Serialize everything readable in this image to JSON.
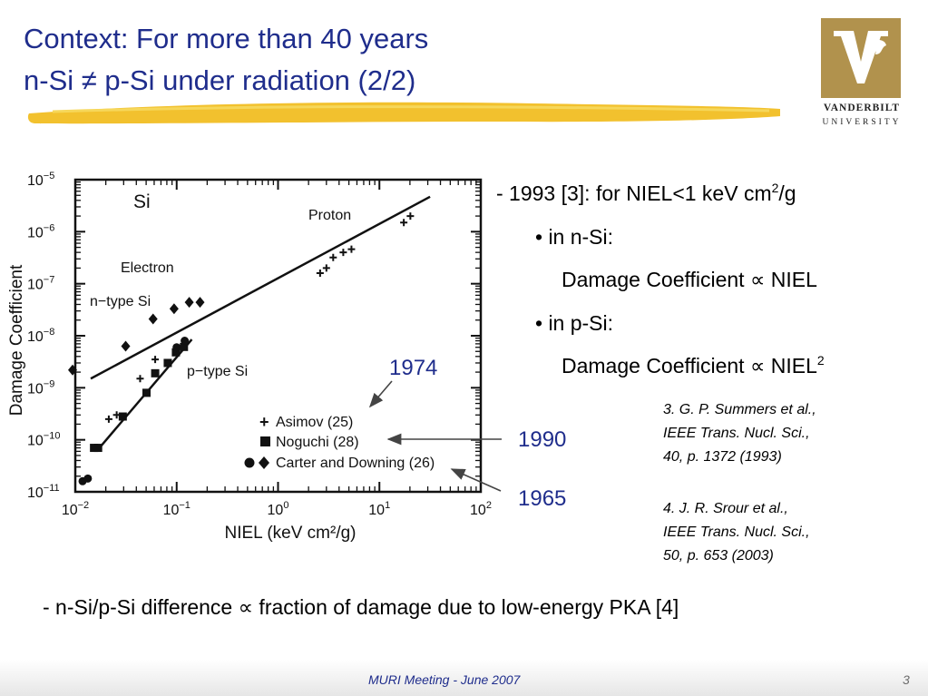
{
  "slide": {
    "title_line1": "Context: For more than 40 years",
    "title_line2": "n-Si ≠ p-Si under radiation (2/2)",
    "logo": {
      "line1": "VANDERBILT",
      "line2": "UNIVERSITY",
      "color": "#b1924d",
      "icon": "oak-leaf-v-icon"
    },
    "accent_color": "#1f2d8c",
    "brush_color": "#f2c12e"
  },
  "bullets": {
    "b1_text": "- 1993 [3]: for NIEL<1 keV cm",
    "b1_sup": "2",
    "b1_tail": "/g",
    "b2": "• in n-Si:",
    "b3": "Damage Coefficient ∝ NIEL",
    "b4": "• in p-Si:",
    "b5_text": "Damage Coefficient ∝ NIEL",
    "b5_sup": "2"
  },
  "refs": {
    "r3": [
      "3. G. P. Summers et al.,",
      "IEEE Trans. Nucl. Sci.,",
      "40, p. 1372 (1993)"
    ],
    "r4": [
      "4. J. R. Srour et al.,",
      "IEEE Trans. Nucl. Sci.,",
      "50, p. 653 (2003)"
    ]
  },
  "bottom_line": "- n-Si/p-Si difference ∝ fraction of damage due to low-energy PKA [4]",
  "footer": {
    "text": "MURI Meeting - June 2007",
    "page": "3"
  },
  "annotations": {
    "y1974": "1974",
    "y1990": "1990",
    "y1965": "1965"
  },
  "chart_data": {
    "type": "scatter",
    "xscale": "log",
    "yscale": "log",
    "xlim": [
      0.01,
      100
    ],
    "ylim": [
      1e-11,
      1e-05
    ],
    "xlabel": "NIEL (keV cm²/g)",
    "ylabel": "Damage Coefficient",
    "x_ticks": [
      0.01,
      0.1,
      1,
      10,
      100
    ],
    "x_tick_labels": [
      [
        "10",
        "−2"
      ],
      [
        "10",
        "−1"
      ],
      [
        "10",
        "0"
      ],
      [
        "10",
        "1"
      ],
      [
        "10",
        "2"
      ]
    ],
    "y_ticks": [
      1e-05,
      1e-06,
      1e-07,
      1e-08,
      1e-09,
      1e-10,
      1e-11
    ],
    "y_tick_labels": [
      [
        "10",
        "−5"
      ],
      [
        "10",
        "−6"
      ],
      [
        "10",
        "−7"
      ],
      [
        "10",
        "−8"
      ],
      [
        "10",
        "−9"
      ],
      [
        "10",
        "−10"
      ],
      [
        "10",
        "−11"
      ]
    ],
    "inner_labels": {
      "material": "Si",
      "proton": "Proton",
      "electron": "Electron",
      "ntype": "n−type Si",
      "ptype": "p−type Si"
    },
    "legend": [
      {
        "label": "Asimov (25)",
        "marker": "plus"
      },
      {
        "label": "Noguchi (28)",
        "marker": "square"
      },
      {
        "label": "Carter and Downing (26)",
        "marker": "circle-diamond"
      }
    ],
    "lines": [
      {
        "id": "n-type-fit",
        "points": [
          [
            0.0142,
            1.5e-09
          ],
          [
            31.6,
            4.7e-06
          ]
        ]
      },
      {
        "id": "p-type-fit",
        "points": [
          [
            0.0173,
            7e-11
          ],
          [
            0.141,
            8.5e-09
          ]
        ]
      }
    ],
    "series": [
      {
        "marker": "plus",
        "points": [
          [
            2.6,
            1.6e-07
          ],
          [
            3.0,
            2e-07
          ],
          [
            3.5,
            3.2e-07
          ],
          [
            4.4,
            4e-07
          ],
          [
            5.3,
            4.6e-07
          ],
          [
            17.4,
            1.5e-06
          ],
          [
            20.2,
            2e-06
          ],
          [
            0.0214,
            2.5e-10
          ],
          [
            0.0256,
            3e-10
          ],
          [
            0.0436,
            1.5e-09
          ],
          [
            0.0614,
            3.5e-09
          ]
        ]
      },
      {
        "marker": "square",
        "points": [
          [
            0.0153,
            7e-11
          ],
          [
            0.0168,
            7e-11
          ],
          [
            0.0294,
            2.8e-10
          ],
          [
            0.0504,
            8e-10
          ],
          [
            0.0614,
            1.9e-09
          ],
          [
            0.0817,
            3e-09
          ],
          [
            0.0983,
            4.8e-09
          ],
          [
            0.118,
            6.1e-09
          ]
        ]
      },
      {
        "marker": "circle",
        "points": [
          [
            0.0118,
            1.6e-11
          ],
          [
            0.0133,
            1.8e-11
          ],
          [
            0.1,
            6e-09
          ],
          [
            0.12,
            8e-09
          ]
        ]
      },
      {
        "marker": "diamond",
        "points": [
          [
            0.0094,
            2.2e-09
          ],
          [
            0.0314,
            6.3e-09
          ],
          [
            0.0585,
            2.1e-08
          ],
          [
            0.0943,
            3.3e-08
          ],
          [
            0.133,
            4.4e-08
          ],
          [
            0.17,
            4.4e-08
          ]
        ]
      }
    ]
  }
}
